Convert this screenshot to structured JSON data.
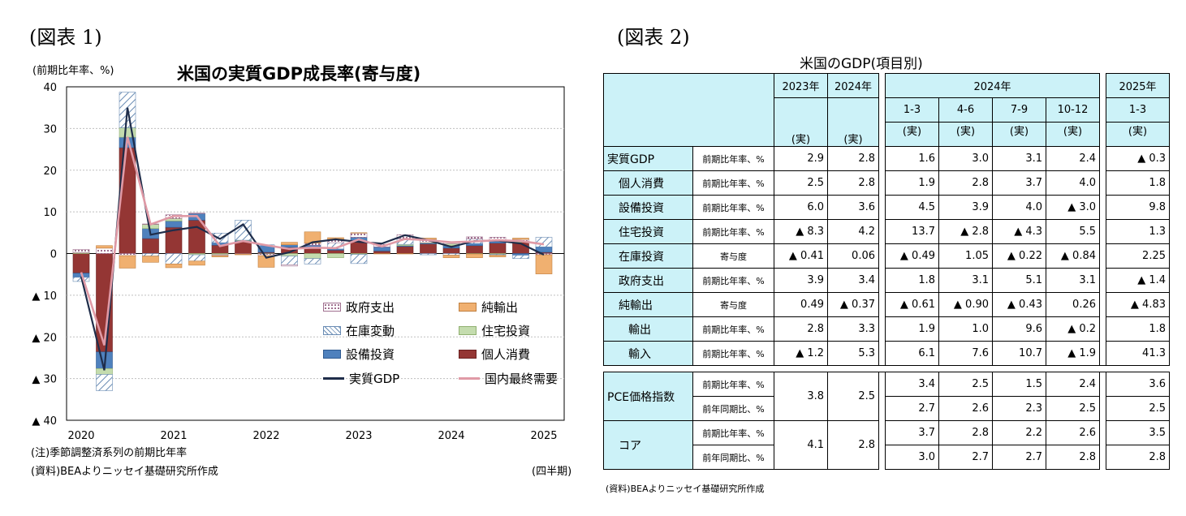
{
  "fig1_label": "(図表 1)",
  "fig2_label": "(図表 2)",
  "chart_title": "米国の実質GDP成長率(寄与度)",
  "y_unit_label": "(前期比年率、%)",
  "note": "(注)季節調整済系列の前期比年率",
  "source_left": "(資料)BEAよりニッセイ基礎研究所作成",
  "x_unit_label": "(四半期)",
  "legend": [
    {
      "key": "gov",
      "label": "政府支出"
    },
    {
      "key": "net",
      "label": "純輸出"
    },
    {
      "key": "inv",
      "label": "在庫変動"
    },
    {
      "key": "res",
      "label": "住宅投資"
    },
    {
      "key": "biz",
      "label": "設備投資"
    },
    {
      "key": "pce",
      "label": "個人消費"
    },
    {
      "key": "gdp",
      "label": "実質GDP"
    },
    {
      "key": "dom",
      "label": "国内最終需要"
    }
  ],
  "colors": {
    "gov": "#cfa8c8",
    "net": "#f0b070",
    "inv": "#6a8cb4",
    "res": "#c4dcae",
    "biz": "#4f81bd",
    "pce": "#943634",
    "gdp": "#1f2d4a",
    "dom": "#e09aa6"
  },
  "chart_data": {
    "type": "bar",
    "stacked": true,
    "ylim": [
      -40,
      40
    ],
    "yticks": [
      40,
      30,
      20,
      10,
      0,
      -10,
      -20,
      -30,
      -40
    ],
    "ytick_labels": [
      "40",
      "30",
      "20",
      "10",
      "0",
      "▲ 10",
      "▲ 20",
      "▲ 30",
      "▲ 40"
    ],
    "x_labels": [
      "2020",
      "2021",
      "2022",
      "2023",
      "2024",
      "2025"
    ],
    "quarters": [
      "2020Q1",
      "2020Q2",
      "2020Q3",
      "2020Q4",
      "2021Q1",
      "2021Q2",
      "2021Q3",
      "2021Q4",
      "2022Q1",
      "2022Q2",
      "2022Q3",
      "2022Q4",
      "2023Q1",
      "2023Q2",
      "2023Q3",
      "2023Q4",
      "2024Q1",
      "2024Q2",
      "2024Q3",
      "2024Q4",
      "2025Q1"
    ],
    "series": [
      {
        "name": "個人消費",
        "key": "pce",
        "values": [
          -4.7,
          -23.6,
          25.4,
          3.6,
          6.3,
          8.0,
          2.0,
          2.9,
          0.3,
          1.5,
          1.4,
          0.8,
          3.1,
          0.6,
          1.7,
          2.3,
          1.3,
          1.9,
          2.5,
          2.7,
          0.3
        ]
      },
      {
        "name": "設備投資",
        "key": "biz",
        "values": [
          -1.0,
          -4.0,
          2.5,
          2.4,
          1.5,
          1.6,
          0.6,
          0.2,
          1.6,
          0.6,
          0.6,
          0.3,
          0.8,
          1.0,
          0.2,
          0.2,
          0.6,
          0.5,
          0.5,
          -0.4,
          1.3
        ]
      },
      {
        "name": "住宅投資",
        "key": "res",
        "values": [
          0.2,
          -1.4,
          2.3,
          1.0,
          0.6,
          -0.3,
          -0.3,
          0.1,
          -0.1,
          -0.6,
          -1.2,
          -1.0,
          -0.2,
          0.0,
          0.3,
          0.1,
          0.5,
          -0.1,
          -0.2,
          0.2,
          0.0
        ]
      },
      {
        "name": "在庫変動",
        "key": "inv",
        "values": [
          -1.0,
          -3.9,
          8.5,
          -0.6,
          -2.5,
          -1.5,
          2.3,
          4.8,
          0.2,
          -2.1,
          -1.3,
          1.5,
          -2.2,
          0.0,
          1.3,
          -0.3,
          -0.4,
          1.1,
          -0.2,
          -0.8,
          2.3
        ]
      },
      {
        "name": "政府支出",
        "key": "gov",
        "values": [
          0.8,
          1.3,
          -0.5,
          0.1,
          0.9,
          0.1,
          -0.2,
          -0.1,
          -0.4,
          -0.3,
          0.5,
          0.8,
          1.0,
          0.6,
          1.0,
          0.8,
          0.3,
          0.5,
          0.9,
          0.5,
          -0.3
        ]
      },
      {
        "name": "純輸出",
        "key": "net",
        "values": [
          0.0,
          0.6,
          -3.0,
          -1.5,
          -0.9,
          -1.0,
          -0.3,
          -0.2,
          -2.8,
          0.6,
          2.7,
          0.4,
          0.1,
          -0.1,
          -0.1,
          0.3,
          -0.6,
          -0.9,
          -0.4,
          0.3,
          -4.6
        ]
      }
    ],
    "lines": [
      {
        "name": "実質GDP",
        "key": "gdp",
        "values": [
          -5.5,
          -28.0,
          35.0,
          4.5,
          5.6,
          6.4,
          3.5,
          7.0,
          -1.0,
          0.3,
          2.7,
          3.4,
          2.8,
          2.4,
          4.4,
          3.2,
          1.6,
          3.0,
          3.1,
          2.4,
          -0.3
        ]
      },
      {
        "name": "国内最終需要",
        "key": "dom",
        "values": [
          -4.5,
          -22.0,
          28.0,
          7.0,
          9.0,
          9.0,
          1.8,
          3.0,
          2.0,
          1.1,
          1.4,
          1.3,
          3.4,
          1.7,
          3.5,
          3.2,
          2.7,
          2.9,
          3.2,
          3.0,
          2.2
        ]
      }
    ]
  },
  "table": {
    "title": "米国のGDP(項目別)",
    "source": "(資料)BEAよりニッセイ基礎研究所作成",
    "col_headers": {
      "y2023": "2023年",
      "y2024": "2024年",
      "group2024": "2024年",
      "group2025": "2025年",
      "q1": "1-3",
      "q2": "4-6",
      "q3": "7-9",
      "q4": "10-12",
      "q2025": "1-3",
      "actual": "(実)"
    },
    "rows": [
      {
        "label": "実質GDP",
        "indent": 0,
        "unit": "前期比年率、%",
        "values": [
          "2.9",
          "2.8",
          "1.6",
          "3.0",
          "3.1",
          "2.4",
          "▲ 0.3"
        ]
      },
      {
        "label": "個人消費",
        "indent": 1,
        "unit": "前期比年率、%",
        "values": [
          "2.5",
          "2.8",
          "1.9",
          "2.8",
          "3.7",
          "4.0",
          "1.8"
        ]
      },
      {
        "label": "設備投資",
        "indent": 1,
        "unit": "前期比年率、%",
        "values": [
          "6.0",
          "3.6",
          "4.5",
          "3.9",
          "4.0",
          "▲ 3.0",
          "9.8"
        ]
      },
      {
        "label": "住宅投資",
        "indent": 1,
        "unit": "前期比年率、%",
        "values": [
          "▲ 8.3",
          "4.2",
          "13.7",
          "▲ 2.8",
          "▲ 4.3",
          "5.5",
          "1.3"
        ]
      },
      {
        "label": "在庫投資",
        "indent": 1,
        "unit": "寄与度",
        "values": [
          "▲ 0.41",
          "0.06",
          "▲ 0.49",
          "1.05",
          "▲ 0.22",
          "▲ 0.84",
          "2.25"
        ]
      },
      {
        "label": "政府支出",
        "indent": 1,
        "unit": "前期比年率、%",
        "values": [
          "3.9",
          "3.4",
          "1.8",
          "3.1",
          "5.1",
          "3.1",
          "▲ 1.4"
        ]
      },
      {
        "label": "純輸出",
        "indent": 1,
        "unit": "寄与度",
        "values": [
          "0.49",
          "▲ 0.37",
          "▲ 0.61",
          "▲ 0.90",
          "▲ 0.43",
          "0.26",
          "▲ 4.83"
        ]
      },
      {
        "label": "輸出",
        "indent": 2,
        "unit": "前期比年率、%",
        "values": [
          "2.8",
          "3.3",
          "1.9",
          "1.0",
          "9.6",
          "▲ 0.2",
          "1.8"
        ]
      },
      {
        "label": "輸入",
        "indent": 2,
        "unit": "前期比年率、%",
        "values": [
          "▲ 1.2",
          "5.3",
          "6.1",
          "7.6",
          "10.7",
          "▲ 1.9",
          "41.3"
        ]
      }
    ],
    "pce": {
      "label": "PCE価格指数",
      "unit_qoq": "前期比年率、%",
      "unit_yoy": "前年同期比、%",
      "annual": [
        "3.8",
        "2.5"
      ],
      "qoq": [
        "3.4",
        "2.5",
        "1.5",
        "2.4",
        "3.6"
      ],
      "yoy": [
        "2.7",
        "2.6",
        "2.3",
        "2.5",
        "2.5"
      ]
    },
    "core": {
      "label": "コア",
      "unit_qoq": "前期比年率、%",
      "unit_yoy": "前年同期比、%",
      "annual": [
        "4.1",
        "2.8"
      ],
      "qoq": [
        "3.7",
        "2.8",
        "2.2",
        "2.6",
        "3.5"
      ],
      "yoy": [
        "3.0",
        "2.7",
        "2.7",
        "2.8",
        "2.8"
      ]
    }
  }
}
